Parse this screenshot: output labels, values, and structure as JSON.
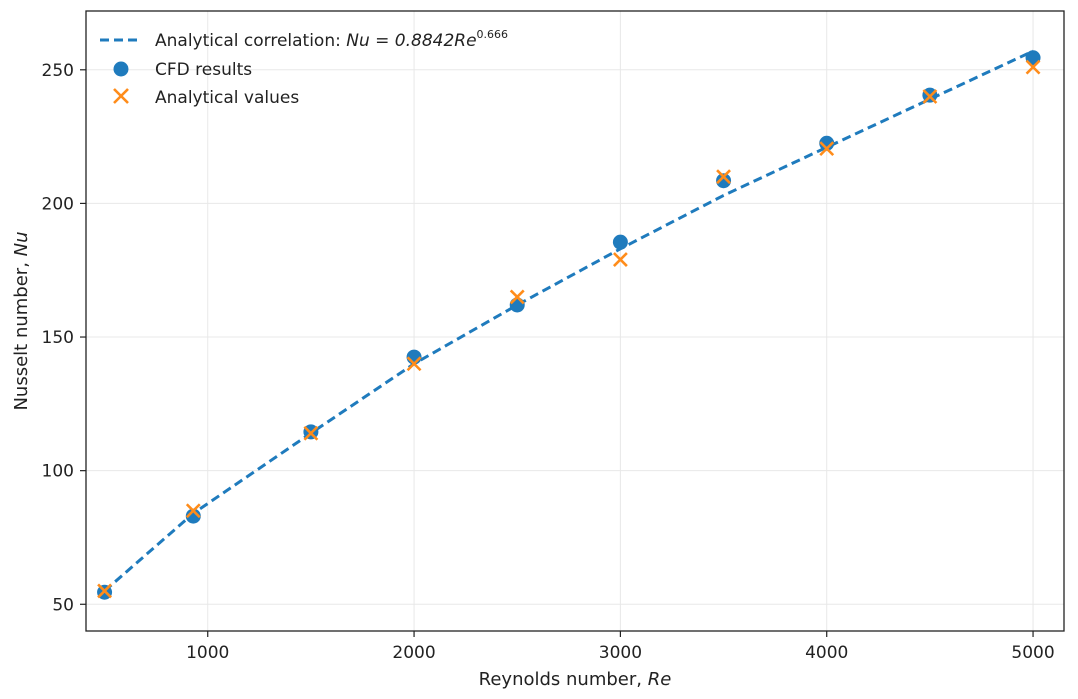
{
  "chart_data": {
    "type": "scatter",
    "xlabel": "Reynolds number, ",
    "xlabel_var": "Re",
    "ylabel": "Nusselt number, ",
    "ylabel_var": "Nu",
    "xlim": [
      410,
      5150
    ],
    "ylim": [
      40,
      272
    ],
    "xticks": [
      1000,
      2000,
      3000,
      4000,
      5000
    ],
    "yticks": [
      50,
      100,
      150,
      200,
      250
    ],
    "grid": true,
    "legend_position": "top-left",
    "series": [
      {
        "name": "Analytical correlation: ",
        "name_formula": "Nu = 0.8842Re",
        "name_exponent": "0.666",
        "kind": "dashed-line",
        "color": "#1f7bbd",
        "x": [
          500,
          930,
          1500,
          2000,
          2500,
          3000,
          3500,
          4000,
          4500,
          5000
        ],
        "y": [
          55,
          84,
          114,
          140,
          162,
          183,
          203,
          221,
          239,
          257
        ]
      },
      {
        "name": "CFD results",
        "kind": "circle",
        "color": "#1f7bbd",
        "x": [
          500,
          930,
          1500,
          2000,
          2500,
          3000,
          3500,
          4000,
          4500,
          5000
        ],
        "y": [
          54.5,
          83,
          114.5,
          142.5,
          162,
          185.5,
          208.5,
          222.5,
          240.5,
          254.5
        ]
      },
      {
        "name": "Analytical values",
        "kind": "cross",
        "color": "#ff8c1a",
        "x": [
          500,
          930,
          1500,
          2000,
          2500,
          3000,
          3500,
          4000,
          4500,
          5000
        ],
        "y": [
          55,
          85,
          114,
          140,
          165,
          179,
          210,
          220.5,
          240,
          251
        ]
      }
    ]
  }
}
